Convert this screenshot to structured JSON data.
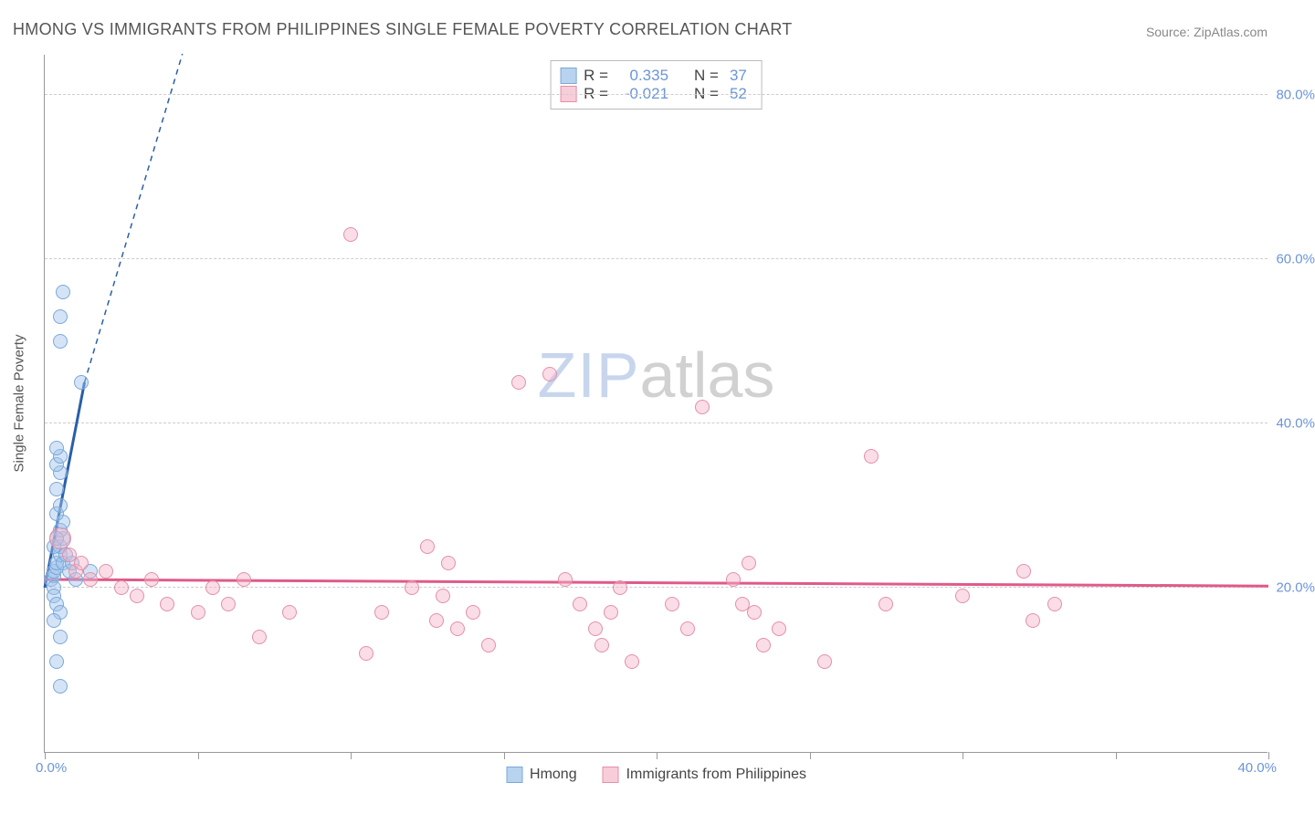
{
  "chart": {
    "type": "scatter",
    "title": "HMONG VS IMMIGRANTS FROM PHILIPPINES SINGLE FEMALE POVERTY CORRELATION CHART",
    "source": "Source: ZipAtlas.com",
    "y_axis_title": "Single Female Poverty",
    "xlim": [
      0,
      40
    ],
    "ylim": [
      0,
      85
    ],
    "x_label_start": "0.0%",
    "x_label_end": "40.0%",
    "y_ticks": [
      20,
      40,
      60,
      80
    ],
    "y_tick_labels": [
      "20.0%",
      "40.0%",
      "60.0%",
      "80.0%"
    ],
    "x_tick_positions": [
      0,
      5,
      10,
      15,
      20,
      25,
      30,
      35,
      40
    ],
    "grid_color": "#cccccc",
    "axis_color": "#999999",
    "background_color": "#ffffff",
    "tick_label_color": "#6b95d8",
    "marker_radius": 8,
    "marker_radius_large": 12,
    "watermark": {
      "zip": "ZIP",
      "atlas": "atlas"
    }
  },
  "series": [
    {
      "name": "Hmong",
      "label": "Hmong",
      "fill": "rgba(160,195,235,0.45)",
      "stroke": "#7aa8d8",
      "swatch_fill": "#b8d3ef",
      "swatch_border": "#7aa8d8",
      "R": "0.335",
      "N": "37",
      "reg_color": "#2a5fa8",
      "reg_points": {
        "x1": 0,
        "y1": 20,
        "x2": 1.3,
        "y2": 45,
        "extend_x": 4.5,
        "extend_y": 100
      },
      "data": [
        {
          "x": 0.2,
          "y": 21
        },
        {
          "x": 0.3,
          "y": 21.5
        },
        {
          "x": 0.3,
          "y": 22
        },
        {
          "x": 0.4,
          "y": 22.5
        },
        {
          "x": 0.4,
          "y": 23
        },
        {
          "x": 0.5,
          "y": 24
        },
        {
          "x": 0.5,
          "y": 25
        },
        {
          "x": 0.6,
          "y": 26
        },
        {
          "x": 0.5,
          "y": 27
        },
        {
          "x": 0.6,
          "y": 28
        },
        {
          "x": 0.4,
          "y": 29
        },
        {
          "x": 0.3,
          "y": 20
        },
        {
          "x": 0.3,
          "y": 19
        },
        {
          "x": 0.4,
          "y": 18
        },
        {
          "x": 0.5,
          "y": 17
        },
        {
          "x": 0.3,
          "y": 16
        },
        {
          "x": 0.5,
          "y": 30
        },
        {
          "x": 0.4,
          "y": 32
        },
        {
          "x": 0.5,
          "y": 34
        },
        {
          "x": 0.4,
          "y": 35
        },
        {
          "x": 0.5,
          "y": 36
        },
        {
          "x": 0.4,
          "y": 37
        },
        {
          "x": 1.2,
          "y": 45
        },
        {
          "x": 0.5,
          "y": 50
        },
        {
          "x": 0.5,
          "y": 53
        },
        {
          "x": 0.6,
          "y": 56
        },
        {
          "x": 0.5,
          "y": 14
        },
        {
          "x": 0.4,
          "y": 11
        },
        {
          "x": 0.5,
          "y": 8
        },
        {
          "x": 0.6,
          "y": 23
        },
        {
          "x": 0.7,
          "y": 24
        },
        {
          "x": 0.8,
          "y": 22
        },
        {
          "x": 0.9,
          "y": 23
        },
        {
          "x": 1.0,
          "y": 21
        },
        {
          "x": 1.5,
          "y": 22
        },
        {
          "x": 0.3,
          "y": 25
        },
        {
          "x": 0.4,
          "y": 26
        }
      ]
    },
    {
      "name": "Immigrants from Philippines",
      "label": "Immigrants from Philippines",
      "fill": "rgba(245,180,200,0.45)",
      "stroke": "#e390a8",
      "swatch_fill": "#f7cdd9",
      "swatch_border": "#e390a8",
      "R": "-0.021",
      "N": "52",
      "reg_color": "#e05a8a",
      "reg_points": {
        "x1": 0,
        "y1": 21,
        "x2": 40,
        "y2": 20.2
      },
      "data": [
        {
          "x": 0.5,
          "y": 26,
          "r": 12
        },
        {
          "x": 0.8,
          "y": 24
        },
        {
          "x": 1.0,
          "y": 22
        },
        {
          "x": 1.5,
          "y": 21
        },
        {
          "x": 2.0,
          "y": 22
        },
        {
          "x": 2.5,
          "y": 20
        },
        {
          "x": 3.0,
          "y": 19
        },
        {
          "x": 3.5,
          "y": 21
        },
        {
          "x": 4.0,
          "y": 18
        },
        {
          "x": 5.0,
          "y": 17
        },
        {
          "x": 5.5,
          "y": 20
        },
        {
          "x": 6.0,
          "y": 18
        },
        {
          "x": 6.5,
          "y": 21
        },
        {
          "x": 7.0,
          "y": 14
        },
        {
          "x": 8.0,
          "y": 17
        },
        {
          "x": 10.0,
          "y": 63
        },
        {
          "x": 10.5,
          "y": 12
        },
        {
          "x": 11.0,
          "y": 17
        },
        {
          "x": 12.0,
          "y": 20
        },
        {
          "x": 12.5,
          "y": 25
        },
        {
          "x": 12.8,
          "y": 16
        },
        {
          "x": 13.0,
          "y": 19
        },
        {
          "x": 13.2,
          "y": 23
        },
        {
          "x": 14.0,
          "y": 17
        },
        {
          "x": 14.5,
          "y": 13
        },
        {
          "x": 15.5,
          "y": 45
        },
        {
          "x": 16.5,
          "y": 46
        },
        {
          "x": 17.0,
          "y": 21
        },
        {
          "x": 17.5,
          "y": 18
        },
        {
          "x": 18.0,
          "y": 15
        },
        {
          "x": 18.2,
          "y": 13
        },
        {
          "x": 18.5,
          "y": 17
        },
        {
          "x": 18.8,
          "y": 20
        },
        {
          "x": 19.2,
          "y": 11
        },
        {
          "x": 20.5,
          "y": 18
        },
        {
          "x": 21.0,
          "y": 15
        },
        {
          "x": 21.5,
          "y": 42
        },
        {
          "x": 22.5,
          "y": 21
        },
        {
          "x": 22.8,
          "y": 18
        },
        {
          "x": 23.0,
          "y": 23
        },
        {
          "x": 23.2,
          "y": 17
        },
        {
          "x": 23.5,
          "y": 13
        },
        {
          "x": 24.0,
          "y": 15
        },
        {
          "x": 25.5,
          "y": 11
        },
        {
          "x": 27.0,
          "y": 36
        },
        {
          "x": 27.5,
          "y": 18
        },
        {
          "x": 30.0,
          "y": 19
        },
        {
          "x": 32.0,
          "y": 22
        },
        {
          "x": 32.3,
          "y": 16
        },
        {
          "x": 33.0,
          "y": 18
        },
        {
          "x": 13.5,
          "y": 15
        },
        {
          "x": 1.2,
          "y": 23
        }
      ]
    }
  ],
  "stats_labels": {
    "R": "R  =",
    "N": "N  ="
  }
}
